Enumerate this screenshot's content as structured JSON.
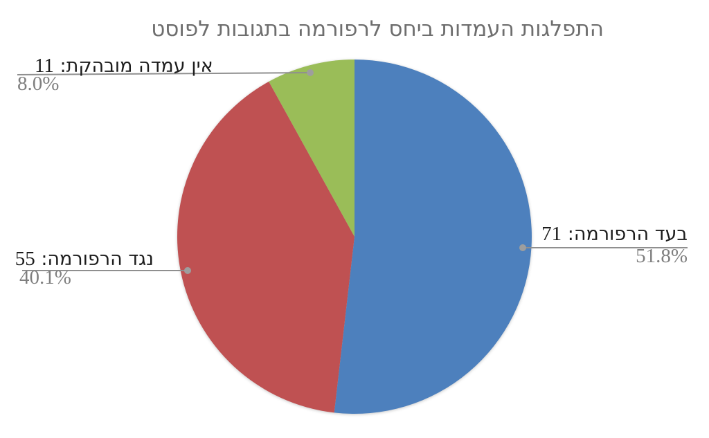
{
  "title": "התפלגות העמדות ביחס לרפורמה בתגובות לפוסט",
  "ui": {
    "label_separator": ": "
  },
  "chart_data": {
    "type": "pie",
    "title": "התפלגות העמדות ביחס לרפורמה בתגובות לפוסט",
    "title_color": "#6e6e6e",
    "background": "#ffffff",
    "direction": "clockwise",
    "start_angle_deg": 0,
    "total": 137,
    "legend_position": "labeled-callouts",
    "slices": [
      {
        "label": "בעד הרפורמה",
        "value": 71,
        "pct": 51.8,
        "pct_label": "51.8%",
        "color": "#4d80bd"
      },
      {
        "label": "נגד הרפורמה",
        "value": 55,
        "pct": 40.1,
        "pct_label": "40.1%",
        "color": "#bf5152"
      },
      {
        "label": "אין עמדה מובהקת",
        "value": 11,
        "pct": 8.0,
        "pct_label": "8.0%",
        "color": "#9abd58"
      }
    ],
    "callout_line_color": "#8f8f8f",
    "callout_dot_color": "#9e9e9e",
    "label_text_color": "#1c1c1c",
    "pct_text_color": "#7f7f7f"
  }
}
